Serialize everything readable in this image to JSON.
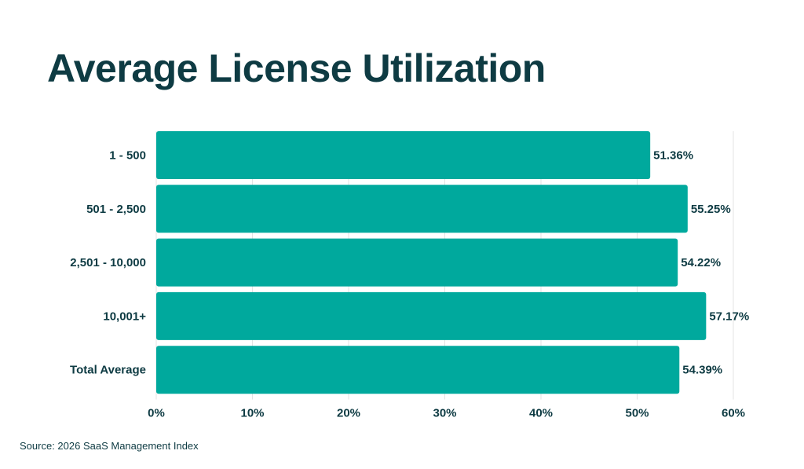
{
  "title": "Average License Utilization",
  "source": "Source: 2026 SaaS Management Index",
  "colors": {
    "bar": "#00a99d",
    "text": "#0e3b43",
    "grid": "#e3e3e3"
  },
  "chart_data": {
    "type": "bar",
    "orientation": "horizontal",
    "categories": [
      "1 - 500",
      "501 - 2,500",
      "2,501 - 10,000",
      "10,001+",
      "Total Average"
    ],
    "values": [
      51.36,
      55.25,
      54.22,
      57.17,
      54.39
    ],
    "value_labels": [
      "51.36%",
      "55.25%",
      "54.22%",
      "57.17%",
      "54.39%"
    ],
    "xlim": [
      0,
      60
    ],
    "x_ticks": [
      0,
      10,
      20,
      30,
      40,
      50,
      60
    ],
    "x_tick_labels": [
      "0%",
      "10%",
      "20%",
      "30%",
      "40%",
      "50%",
      "60%"
    ],
    "grid": true,
    "legend": "none"
  }
}
